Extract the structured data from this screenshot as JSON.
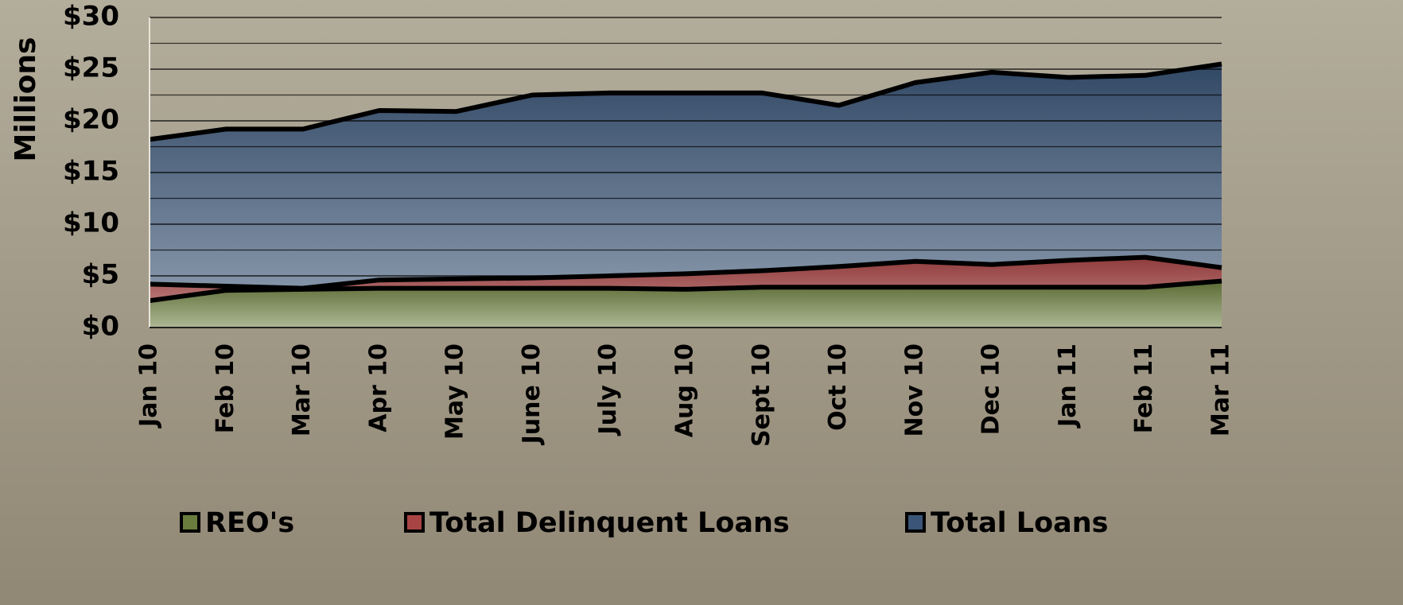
{
  "chart_data": {
    "type": "area",
    "y_axis_label": "Millions",
    "categories": [
      "Jan 10",
      "Feb 10",
      "Mar 10",
      "Apr 10",
      "May 10",
      "June 10",
      "July 10",
      "Aug 10",
      "Sept 10",
      "Oct 10",
      "Nov 10",
      "Dec 10",
      "Jan 11",
      "Feb 11",
      "Mar 11"
    ],
    "series": [
      {
        "name": "REO's",
        "color": "#6a7d3c",
        "values": [
          2.6,
          3.6,
          3.7,
          3.8,
          3.8,
          3.8,
          3.8,
          3.7,
          3.9,
          3.9,
          3.9,
          3.9,
          3.9,
          3.9,
          4.5
        ]
      },
      {
        "name": "Total Delinquent Loans",
        "color": "#a84444",
        "values": [
          4.2,
          4.0,
          3.8,
          4.6,
          4.7,
          4.8,
          5.0,
          5.2,
          5.5,
          5.9,
          6.4,
          6.1,
          6.5,
          6.8,
          5.8
        ]
      },
      {
        "name": "Total Loans",
        "color": "#3a5577",
        "values": [
          18.2,
          19.2,
          19.2,
          21.0,
          20.9,
          22.5,
          22.7,
          22.7,
          22.7,
          21.5,
          23.7,
          24.7,
          24.2,
          24.4,
          25.5
        ]
      }
    ],
    "ylim": [
      0,
      30
    ],
    "yticks": [
      {
        "value": 0,
        "label": "$0"
      },
      {
        "value": 5,
        "label": "$5"
      },
      {
        "value": 10,
        "label": "$10"
      },
      {
        "value": 15,
        "label": "$15"
      },
      {
        "value": 20,
        "label": "$20"
      },
      {
        "value": 25,
        "label": "$25"
      },
      {
        "value": 30,
        "label": "$30"
      }
    ],
    "minor_yticks": [
      2.5,
      7.5,
      12.5,
      17.5,
      22.5,
      27.5
    ],
    "grid": true,
    "legend": "bottom"
  }
}
